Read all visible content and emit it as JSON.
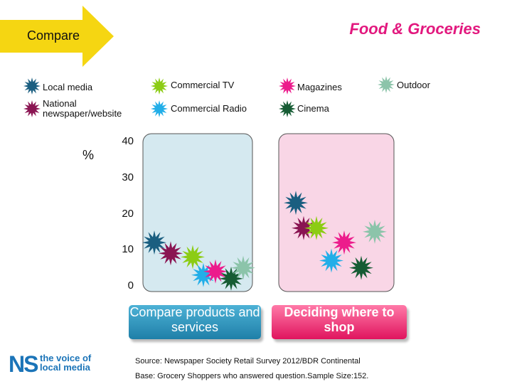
{
  "header": {
    "compare_label": "Compare",
    "title": "Food & Groceries"
  },
  "legend": [
    {
      "name": "Local media",
      "color": "#1a5e80"
    },
    {
      "name": "National newspaper/website",
      "color": "#8a1452"
    },
    {
      "name": "Commercial TV",
      "color": "#8ccc14"
    },
    {
      "name": "Commercial Radio",
      "color": "#22aee8"
    },
    {
      "name": "Magazines",
      "color": "#ec1c8c"
    },
    {
      "name": "Cinema",
      "color": "#165c34"
    },
    {
      "name": "Outdoor",
      "color": "#8cc4aa"
    }
  ],
  "chart_data": {
    "type": "scatter",
    "ylabel": "%",
    "ylim": [
      0,
      40
    ],
    "yticks": [
      "0",
      "10",
      "20",
      "30",
      "40"
    ],
    "categories": [
      "Compare products and services",
      "Deciding where to shop"
    ],
    "series": [
      {
        "name": "Local media",
        "values": [
          12,
          23
        ]
      },
      {
        "name": "National newspaper/website",
        "values": [
          9,
          16
        ]
      },
      {
        "name": "Commercial TV",
        "values": [
          8,
          16
        ]
      },
      {
        "name": "Commercial Radio",
        "values": [
          3,
          7
        ]
      },
      {
        "name": "Magazines",
        "values": [
          4,
          12
        ]
      },
      {
        "name": "Cinema",
        "values": [
          2,
          5
        ]
      },
      {
        "name": "Outdoor",
        "values": [
          5,
          15
        ]
      }
    ]
  },
  "buttons": {
    "compare": "Compare products and services",
    "shop": "Deciding where to shop"
  },
  "footer": {
    "source": "Source: Newspaper Society Retail Survey 2012/BDR Continental",
    "base": "Base: Grocery Shoppers who answered question.Sample Size:152."
  },
  "logo": {
    "ns": "NS",
    "line1": "the voice of",
    "line2": "local media"
  }
}
